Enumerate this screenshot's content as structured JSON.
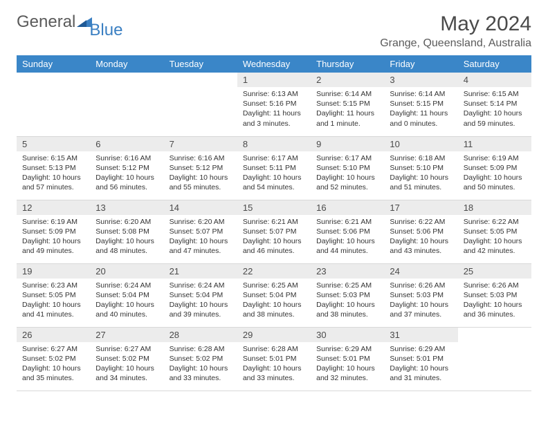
{
  "brand": {
    "word1": "General",
    "word2": "Blue"
  },
  "title": "May 2024",
  "location": "Grange, Queensland, Australia",
  "colors": {
    "header_bg": "#3a86c8",
    "header_text": "#ffffff",
    "daynum_bg": "#ececec",
    "border": "#d8d8d8",
    "text": "#333333",
    "brand_gray": "#5a5a5a",
    "brand_blue": "#3a7fc2"
  },
  "day_headers": [
    "Sunday",
    "Monday",
    "Tuesday",
    "Wednesday",
    "Thursday",
    "Friday",
    "Saturday"
  ],
  "weeks": [
    [
      null,
      null,
      null,
      {
        "n": "1",
        "sr": "Sunrise: 6:13 AM",
        "ss": "Sunset: 5:16 PM",
        "dl": "Daylight: 11 hours and 3 minutes."
      },
      {
        "n": "2",
        "sr": "Sunrise: 6:14 AM",
        "ss": "Sunset: 5:15 PM",
        "dl": "Daylight: 11 hours and 1 minute."
      },
      {
        "n": "3",
        "sr": "Sunrise: 6:14 AM",
        "ss": "Sunset: 5:15 PM",
        "dl": "Daylight: 11 hours and 0 minutes."
      },
      {
        "n": "4",
        "sr": "Sunrise: 6:15 AM",
        "ss": "Sunset: 5:14 PM",
        "dl": "Daylight: 10 hours and 59 minutes."
      }
    ],
    [
      {
        "n": "5",
        "sr": "Sunrise: 6:15 AM",
        "ss": "Sunset: 5:13 PM",
        "dl": "Daylight: 10 hours and 57 minutes."
      },
      {
        "n": "6",
        "sr": "Sunrise: 6:16 AM",
        "ss": "Sunset: 5:12 PM",
        "dl": "Daylight: 10 hours and 56 minutes."
      },
      {
        "n": "7",
        "sr": "Sunrise: 6:16 AM",
        "ss": "Sunset: 5:12 PM",
        "dl": "Daylight: 10 hours and 55 minutes."
      },
      {
        "n": "8",
        "sr": "Sunrise: 6:17 AM",
        "ss": "Sunset: 5:11 PM",
        "dl": "Daylight: 10 hours and 54 minutes."
      },
      {
        "n": "9",
        "sr": "Sunrise: 6:17 AM",
        "ss": "Sunset: 5:10 PM",
        "dl": "Daylight: 10 hours and 52 minutes."
      },
      {
        "n": "10",
        "sr": "Sunrise: 6:18 AM",
        "ss": "Sunset: 5:10 PM",
        "dl": "Daylight: 10 hours and 51 minutes."
      },
      {
        "n": "11",
        "sr": "Sunrise: 6:19 AM",
        "ss": "Sunset: 5:09 PM",
        "dl": "Daylight: 10 hours and 50 minutes."
      }
    ],
    [
      {
        "n": "12",
        "sr": "Sunrise: 6:19 AM",
        "ss": "Sunset: 5:09 PM",
        "dl": "Daylight: 10 hours and 49 minutes."
      },
      {
        "n": "13",
        "sr": "Sunrise: 6:20 AM",
        "ss": "Sunset: 5:08 PM",
        "dl": "Daylight: 10 hours and 48 minutes."
      },
      {
        "n": "14",
        "sr": "Sunrise: 6:20 AM",
        "ss": "Sunset: 5:07 PM",
        "dl": "Daylight: 10 hours and 47 minutes."
      },
      {
        "n": "15",
        "sr": "Sunrise: 6:21 AM",
        "ss": "Sunset: 5:07 PM",
        "dl": "Daylight: 10 hours and 46 minutes."
      },
      {
        "n": "16",
        "sr": "Sunrise: 6:21 AM",
        "ss": "Sunset: 5:06 PM",
        "dl": "Daylight: 10 hours and 44 minutes."
      },
      {
        "n": "17",
        "sr": "Sunrise: 6:22 AM",
        "ss": "Sunset: 5:06 PM",
        "dl": "Daylight: 10 hours and 43 minutes."
      },
      {
        "n": "18",
        "sr": "Sunrise: 6:22 AM",
        "ss": "Sunset: 5:05 PM",
        "dl": "Daylight: 10 hours and 42 minutes."
      }
    ],
    [
      {
        "n": "19",
        "sr": "Sunrise: 6:23 AM",
        "ss": "Sunset: 5:05 PM",
        "dl": "Daylight: 10 hours and 41 minutes."
      },
      {
        "n": "20",
        "sr": "Sunrise: 6:24 AM",
        "ss": "Sunset: 5:04 PM",
        "dl": "Daylight: 10 hours and 40 minutes."
      },
      {
        "n": "21",
        "sr": "Sunrise: 6:24 AM",
        "ss": "Sunset: 5:04 PM",
        "dl": "Daylight: 10 hours and 39 minutes."
      },
      {
        "n": "22",
        "sr": "Sunrise: 6:25 AM",
        "ss": "Sunset: 5:04 PM",
        "dl": "Daylight: 10 hours and 38 minutes."
      },
      {
        "n": "23",
        "sr": "Sunrise: 6:25 AM",
        "ss": "Sunset: 5:03 PM",
        "dl": "Daylight: 10 hours and 38 minutes."
      },
      {
        "n": "24",
        "sr": "Sunrise: 6:26 AM",
        "ss": "Sunset: 5:03 PM",
        "dl": "Daylight: 10 hours and 37 minutes."
      },
      {
        "n": "25",
        "sr": "Sunrise: 6:26 AM",
        "ss": "Sunset: 5:03 PM",
        "dl": "Daylight: 10 hours and 36 minutes."
      }
    ],
    [
      {
        "n": "26",
        "sr": "Sunrise: 6:27 AM",
        "ss": "Sunset: 5:02 PM",
        "dl": "Daylight: 10 hours and 35 minutes."
      },
      {
        "n": "27",
        "sr": "Sunrise: 6:27 AM",
        "ss": "Sunset: 5:02 PM",
        "dl": "Daylight: 10 hours and 34 minutes."
      },
      {
        "n": "28",
        "sr": "Sunrise: 6:28 AM",
        "ss": "Sunset: 5:02 PM",
        "dl": "Daylight: 10 hours and 33 minutes."
      },
      {
        "n": "29",
        "sr": "Sunrise: 6:28 AM",
        "ss": "Sunset: 5:01 PM",
        "dl": "Daylight: 10 hours and 33 minutes."
      },
      {
        "n": "30",
        "sr": "Sunrise: 6:29 AM",
        "ss": "Sunset: 5:01 PM",
        "dl": "Daylight: 10 hours and 32 minutes."
      },
      {
        "n": "31",
        "sr": "Sunrise: 6:29 AM",
        "ss": "Sunset: 5:01 PM",
        "dl": "Daylight: 10 hours and 31 minutes."
      },
      null
    ]
  ]
}
